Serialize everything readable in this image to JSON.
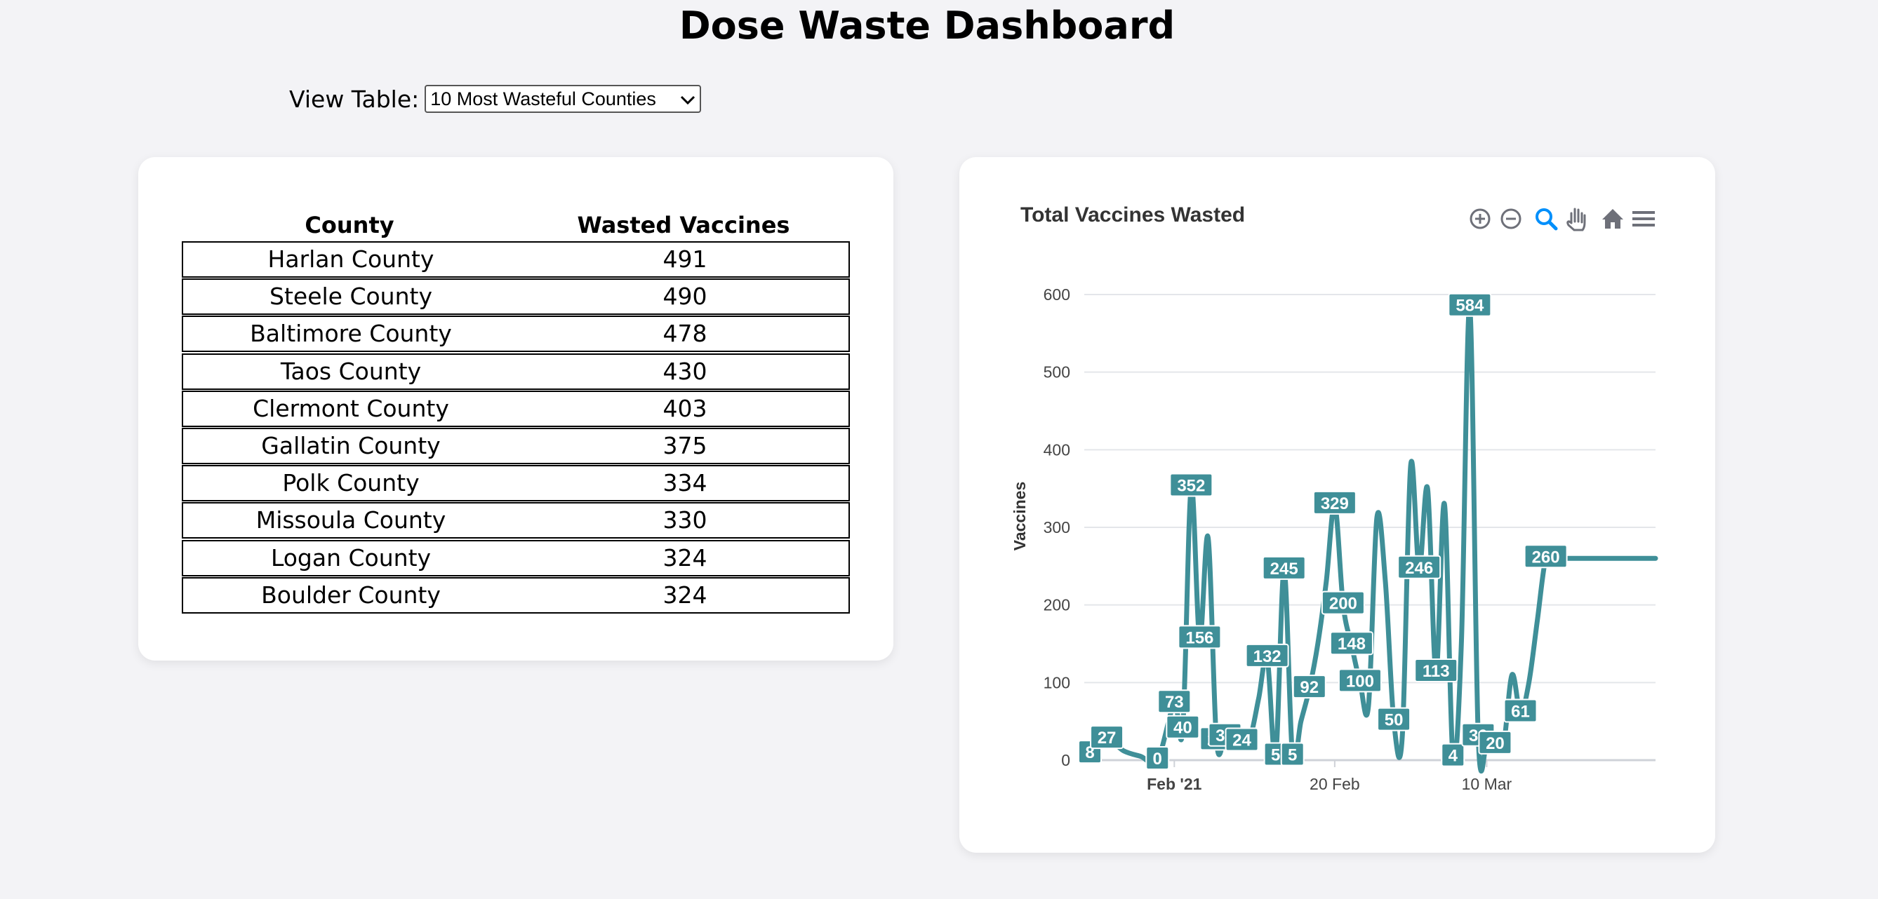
{
  "page": {
    "title": "Dose Waste Dashboard"
  },
  "view": {
    "label": "View Table:",
    "selected": "10 Most Wasteful Counties"
  },
  "table": {
    "headers": [
      "County",
      "Wasted Vaccines"
    ],
    "rows": [
      [
        "Harlan County",
        "491"
      ],
      [
        "Steele County",
        "490"
      ],
      [
        "Baltimore County",
        "478"
      ],
      [
        "Taos County",
        "430"
      ],
      [
        "Clermont County",
        "403"
      ],
      [
        "Gallatin County",
        "375"
      ],
      [
        "Polk County",
        "334"
      ],
      [
        "Missoula County",
        "330"
      ],
      [
        "Logan County",
        "324"
      ],
      [
        "Boulder County",
        "324"
      ]
    ]
  },
  "toolbar": {
    "icons": [
      "zoom-in-icon",
      "zoom-out-icon",
      "zoom-selection-icon",
      "pan-hand-icon",
      "home-icon",
      "menu-icon"
    ],
    "active_color": "#008ffb"
  },
  "chart_data": {
    "type": "line",
    "title": "Total Vaccines Wasted",
    "ylabel": "Vaccines",
    "xlabel": "",
    "ylim": [
      0,
      600
    ],
    "yticks": [
      "0",
      "100",
      "200",
      "300",
      "400",
      "500",
      "600"
    ],
    "xticks": [
      "Feb '21",
      "20 Feb",
      "10 Mar"
    ],
    "line_color": "#3f8f98",
    "grid": true,
    "x": [
      "2021-01-22",
      "2021-01-24",
      "2021-01-26",
      "2021-01-28",
      "2021-01-30",
      "2021-02-01",
      "2021-02-02",
      "2021-02-03",
      "2021-02-04",
      "2021-02-05",
      "2021-02-06",
      "2021-02-07",
      "2021-02-08",
      "2021-02-09",
      "2021-02-10",
      "2021-02-11",
      "2021-02-12",
      "2021-02-13",
      "2021-02-14",
      "2021-02-15",
      "2021-02-16",
      "2021-02-17",
      "2021-02-18",
      "2021-02-19",
      "2021-02-20",
      "2021-02-21",
      "2021-02-22",
      "2021-02-23",
      "2021-02-24",
      "2021-02-25",
      "2021-02-26",
      "2021-02-27",
      "2021-02-28",
      "2021-03-01",
      "2021-03-02",
      "2021-03-03",
      "2021-03-04",
      "2021-03-05",
      "2021-03-06",
      "2021-03-07",
      "2021-03-08",
      "2021-03-09",
      "2021-03-10",
      "2021-03-11",
      "2021-03-12",
      "2021-03-13",
      "2021-03-14",
      "2021-03-15",
      "2021-03-16",
      "2021-03-17",
      "2021-03-18",
      "2021-03-19",
      "2021-03-20",
      "2021-03-21",
      "2021-03-22",
      "2021-03-23",
      "2021-03-24",
      "2021-03-25",
      "2021-03-26",
      "2021-03-27",
      "2021-03-28",
      "2021-03-29",
      "2021-03-30"
    ],
    "values": [
      8,
      27,
      12,
      5,
      0,
      73,
      40,
      352,
      156,
      287,
      25,
      30,
      30,
      24,
      30,
      80,
      132,
      5,
      245,
      5,
      50,
      92,
      150,
      230,
      329,
      200,
      148,
      100,
      70,
      313,
      230,
      50,
      30,
      380,
      246,
      350,
      113,
      330,
      4,
      150,
      584,
      30,
      20,
      20,
      20,
      110,
      61,
      100,
      180,
      260,
      260,
      260,
      260,
      260,
      260,
      260,
      260,
      260,
      260,
      260,
      260,
      260,
      260
    ],
    "data_labels": [
      {
        "x": "2021-01-22",
        "text": "8"
      },
      {
        "x": "2021-01-24",
        "text": "27"
      },
      {
        "x": "2021-01-30",
        "text": "0"
      },
      {
        "x": "2021-02-01",
        "text": "73"
      },
      {
        "x": "2021-02-02",
        "text": "40"
      },
      {
        "x": "2021-02-03",
        "text": "352"
      },
      {
        "x": "2021-02-04",
        "text": "156"
      },
      {
        "x": "2021-02-06",
        "text": "25"
      },
      {
        "x": "2021-02-07",
        "text": "30"
      },
      {
        "x": "2021-02-09",
        "text": "24"
      },
      {
        "x": "2021-02-12",
        "text": "132"
      },
      {
        "x": "2021-02-13",
        "text": "5"
      },
      {
        "x": "2021-02-14",
        "text": "245"
      },
      {
        "x": "2021-02-15",
        "text": "5"
      },
      {
        "x": "2021-02-17",
        "text": "92"
      },
      {
        "x": "2021-02-20",
        "text": "329"
      },
      {
        "x": "2021-02-21",
        "text": "200"
      },
      {
        "x": "2021-02-22",
        "text": "148"
      },
      {
        "x": "2021-02-23",
        "text": "100"
      },
      {
        "x": "2021-02-27",
        "text": "50"
      },
      {
        "x": "2021-03-02",
        "text": "246"
      },
      {
        "x": "2021-03-04",
        "text": "113"
      },
      {
        "x": "2021-03-06",
        "text": "4"
      },
      {
        "x": "2021-03-08",
        "text": "584"
      },
      {
        "x": "2021-03-09",
        "text": "30"
      },
      {
        "x": "2021-03-11",
        "text": "20"
      },
      {
        "x": "2021-03-14",
        "text": "61"
      },
      {
        "x": "2021-03-17",
        "text": "260"
      }
    ]
  }
}
